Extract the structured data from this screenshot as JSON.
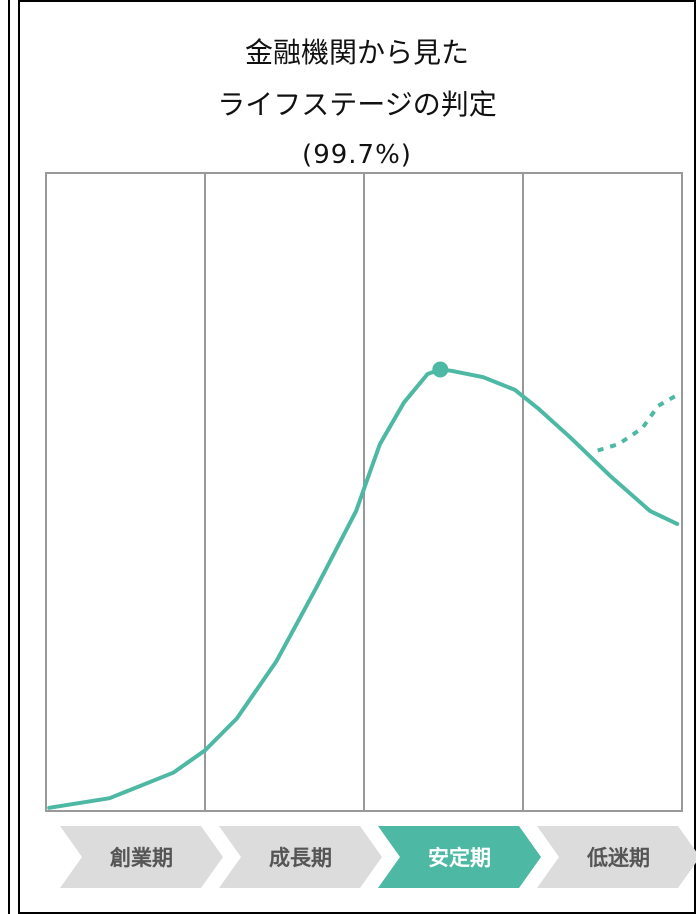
{
  "title_line1": "金融機関から見た",
  "title_line2": "ライフステージの判定",
  "confidence_label": "(99.7%)",
  "colors": {
    "accent": "#4db8a3",
    "stage_inactive": "#dcdcdc",
    "stage_text_inactive": "#555555",
    "stage_text_active": "#ffffff",
    "grid": "#999999"
  },
  "chart_data": {
    "type": "line",
    "stages": [
      "創業期",
      "成長期",
      "安定期",
      "低迷期"
    ],
    "active_stage": 2,
    "x_domain": [
      0,
      4
    ],
    "y_domain": [
      0,
      1
    ],
    "series": [
      {
        "style": "solid",
        "points": [
          [
            0.02,
            0.005
          ],
          [
            0.4,
            0.02
          ],
          [
            0.8,
            0.06
          ],
          [
            1.0,
            0.095
          ],
          [
            1.2,
            0.145
          ],
          [
            1.45,
            0.235
          ],
          [
            1.7,
            0.35
          ],
          [
            1.95,
            0.47
          ],
          [
            2.05,
            0.54
          ],
          [
            2.1,
            0.575
          ],
          [
            2.25,
            0.64
          ],
          [
            2.4,
            0.685
          ],
          [
            2.48,
            0.692
          ],
          [
            2.55,
            0.69
          ],
          [
            2.75,
            0.68
          ],
          [
            2.95,
            0.66
          ],
          [
            3.1,
            0.63
          ],
          [
            3.3,
            0.585
          ],
          [
            3.55,
            0.525
          ],
          [
            3.8,
            0.47
          ],
          [
            3.97,
            0.45
          ]
        ]
      },
      {
        "style": "dashed",
        "points": [
          [
            3.47,
            0.565
          ],
          [
            3.6,
            0.575
          ],
          [
            3.75,
            0.6
          ],
          [
            3.85,
            0.635
          ],
          [
            3.97,
            0.652
          ]
        ]
      }
    ],
    "marker": [
      2.48,
      0.692
    ]
  }
}
